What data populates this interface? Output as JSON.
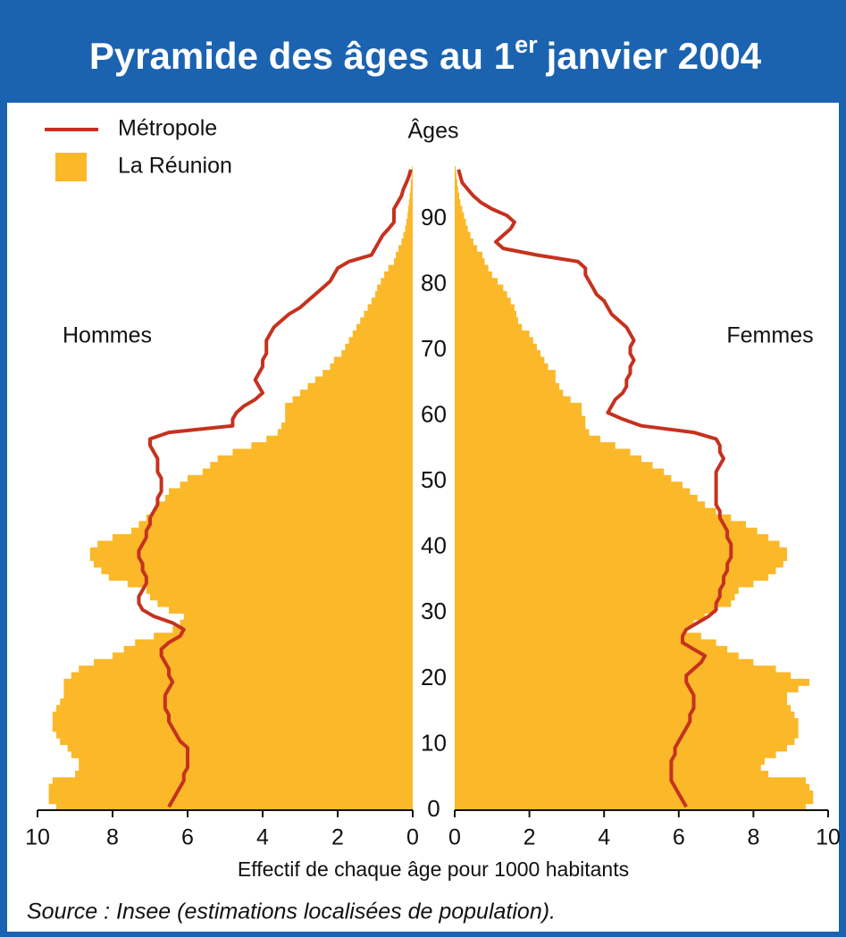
{
  "chart_data": {
    "type": "pyramid",
    "title_main": "Pyramide des âges au 1",
    "title_sup": "er",
    "title_end": "janvier 2004",
    "age_label": "Âges",
    "side_labels": [
      "Hommes",
      "Femmes"
    ],
    "x_label": "Effectif de chaque âge pour 1000 habitants",
    "source": "Source : Insee (estimations localisées de population).",
    "ages": [
      0,
      1,
      2,
      3,
      4,
      5,
      6,
      7,
      8,
      9,
      10,
      11,
      12,
      13,
      14,
      15,
      16,
      17,
      18,
      19,
      20,
      21,
      22,
      23,
      24,
      25,
      26,
      27,
      28,
      29,
      30,
      31,
      32,
      33,
      34,
      35,
      36,
      37,
      38,
      39,
      40,
      41,
      42,
      43,
      44,
      45,
      46,
      47,
      48,
      49,
      50,
      51,
      52,
      53,
      54,
      55,
      56,
      57,
      58,
      59,
      60,
      61,
      62,
      63,
      64,
      65,
      66,
      67,
      68,
      69,
      70,
      71,
      72,
      73,
      74,
      75,
      76,
      77,
      78,
      79,
      80,
      81,
      82,
      83,
      84,
      85,
      86,
      87,
      88,
      89,
      90,
      91,
      92,
      93,
      94,
      95,
      96,
      97
    ],
    "ylim": [
      0,
      90
    ],
    "yticks": [
      0,
      10,
      20,
      30,
      40,
      50,
      60,
      70,
      80,
      90
    ],
    "xlim": [
      0,
      10
    ],
    "xticks": [
      0,
      2,
      4,
      6,
      8,
      10
    ],
    "series": [
      {
        "name": "Métropole",
        "style": "line",
        "color": "#c5321f",
        "values_left": [
          6.5,
          6.4,
          6.3,
          6.2,
          6.1,
          6.1,
          6.0,
          6.0,
          6.0,
          6.0,
          6.2,
          6.3,
          6.4,
          6.5,
          6.5,
          6.6,
          6.6,
          6.6,
          6.5,
          6.4,
          6.5,
          6.5,
          6.6,
          6.7,
          6.7,
          6.5,
          6.2,
          6.1,
          6.4,
          6.9,
          7.2,
          7.3,
          7.3,
          7.2,
          7.1,
          7.1,
          7.2,
          7.2,
          7.3,
          7.3,
          7.2,
          7.1,
          7.1,
          7.0,
          7.0,
          6.9,
          6.8,
          6.8,
          6.7,
          6.7,
          6.7,
          6.8,
          6.8,
          6.8,
          6.9,
          7.0,
          7.0,
          6.5,
          4.8,
          4.8,
          4.7,
          4.5,
          4.2,
          4.0,
          4.1,
          4.2,
          4.1,
          4.0,
          4.0,
          3.9,
          3.9,
          3.9,
          3.8,
          3.7,
          3.5,
          3.3,
          3.0,
          2.8,
          2.6,
          2.4,
          2.2,
          2.1,
          2.0,
          1.7,
          1.1,
          1.0,
          0.9,
          0.8,
          0.64,
          0.5,
          0.5,
          0.5,
          0.4,
          0.3,
          0.25,
          0.17,
          0.1,
          0.05
        ],
        "values_right": [
          6.2,
          6.1,
          6.0,
          5.9,
          5.8,
          5.8,
          5.8,
          5.8,
          5.9,
          5.9,
          6.0,
          6.1,
          6.2,
          6.3,
          6.3,
          6.4,
          6.4,
          6.4,
          6.3,
          6.2,
          6.2,
          6.4,
          6.6,
          6.7,
          6.4,
          6.1,
          6.1,
          6.2,
          6.5,
          6.8,
          7.0,
          7.0,
          7.1,
          7.1,
          7.2,
          7.2,
          7.3,
          7.3,
          7.4,
          7.4,
          7.4,
          7.3,
          7.3,
          7.2,
          7.1,
          7.1,
          7.0,
          7.0,
          7.0,
          7.0,
          7.0,
          7.0,
          7.1,
          7.2,
          7.1,
          7.1,
          7.0,
          6.4,
          5.0,
          4.5,
          4.1,
          4.2,
          4.3,
          4.5,
          4.6,
          4.6,
          4.7,
          4.7,
          4.8,
          4.7,
          4.7,
          4.8,
          4.7,
          4.6,
          4.4,
          4.2,
          4.1,
          4.0,
          3.8,
          3.7,
          3.6,
          3.5,
          3.5,
          3.3,
          2.2,
          1.3,
          1.1,
          1.3,
          1.5,
          1.6,
          1.4,
          1.0,
          0.7,
          0.5,
          0.35,
          0.2,
          0.15,
          0.1
        ]
      },
      {
        "name": "La Réunion",
        "style": "bar",
        "color": "#fbb829",
        "values_left": [
          9.5,
          9.7,
          9.7,
          9.7,
          9.6,
          9.0,
          8.9,
          8.9,
          9.1,
          9.2,
          9.4,
          9.5,
          9.6,
          9.6,
          9.6,
          9.5,
          9.4,
          9.3,
          9.3,
          9.3,
          9.1,
          8.9,
          8.5,
          8.0,
          7.7,
          7.4,
          6.9,
          6.4,
          6.2,
          6.1,
          6.5,
          6.8,
          7.0,
          7.1,
          7.6,
          8.1,
          8.3,
          8.5,
          8.6,
          8.6,
          8.4,
          8.0,
          7.5,
          7.3,
          7.1,
          6.9,
          6.8,
          6.6,
          6.5,
          6.2,
          6.0,
          5.6,
          5.4,
          5.2,
          4.8,
          4.3,
          3.9,
          3.6,
          3.5,
          3.4,
          3.4,
          3.4,
          3.2,
          3.0,
          2.8,
          2.6,
          2.4,
          2.2,
          2.1,
          1.9,
          1.8,
          1.7,
          1.6,
          1.5,
          1.4,
          1.3,
          1.2,
          1.1,
          1.0,
          0.95,
          0.85,
          0.76,
          0.65,
          0.5,
          0.45,
          0.38,
          0.3,
          0.25,
          0.2,
          0.17,
          0.14,
          0.12,
          0.1,
          0.08,
          0.06,
          0.05,
          0.03,
          0.02
        ],
        "values_right": [
          9.4,
          9.6,
          9.6,
          9.5,
          9.4,
          8.4,
          8.2,
          8.3,
          8.6,
          8.9,
          9.1,
          9.2,
          9.2,
          9.2,
          9.1,
          9.0,
          8.9,
          8.9,
          9.2,
          9.5,
          9.0,
          8.6,
          8.0,
          7.6,
          7.3,
          7.0,
          6.6,
          6.2,
          6.4,
          6.7,
          7.0,
          7.4,
          7.5,
          7.6,
          8.0,
          8.4,
          8.6,
          8.8,
          8.9,
          8.9,
          8.7,
          8.4,
          8.1,
          7.8,
          7.4,
          7.0,
          6.7,
          6.5,
          6.3,
          6.1,
          5.8,
          5.6,
          5.3,
          5.0,
          4.7,
          4.3,
          3.9,
          3.6,
          3.5,
          3.5,
          3.4,
          3.4,
          3.1,
          2.9,
          2.8,
          2.7,
          2.7,
          2.5,
          2.4,
          2.3,
          2.2,
          2.1,
          2.0,
          1.8,
          1.7,
          1.65,
          1.6,
          1.5,
          1.4,
          1.3,
          1.15,
          1.0,
          0.9,
          0.8,
          0.74,
          0.6,
          0.5,
          0.42,
          0.35,
          0.3,
          0.25,
          0.2,
          0.15,
          0.12,
          0.09,
          0.07,
          0.05,
          0.03
        ]
      }
    ]
  }
}
